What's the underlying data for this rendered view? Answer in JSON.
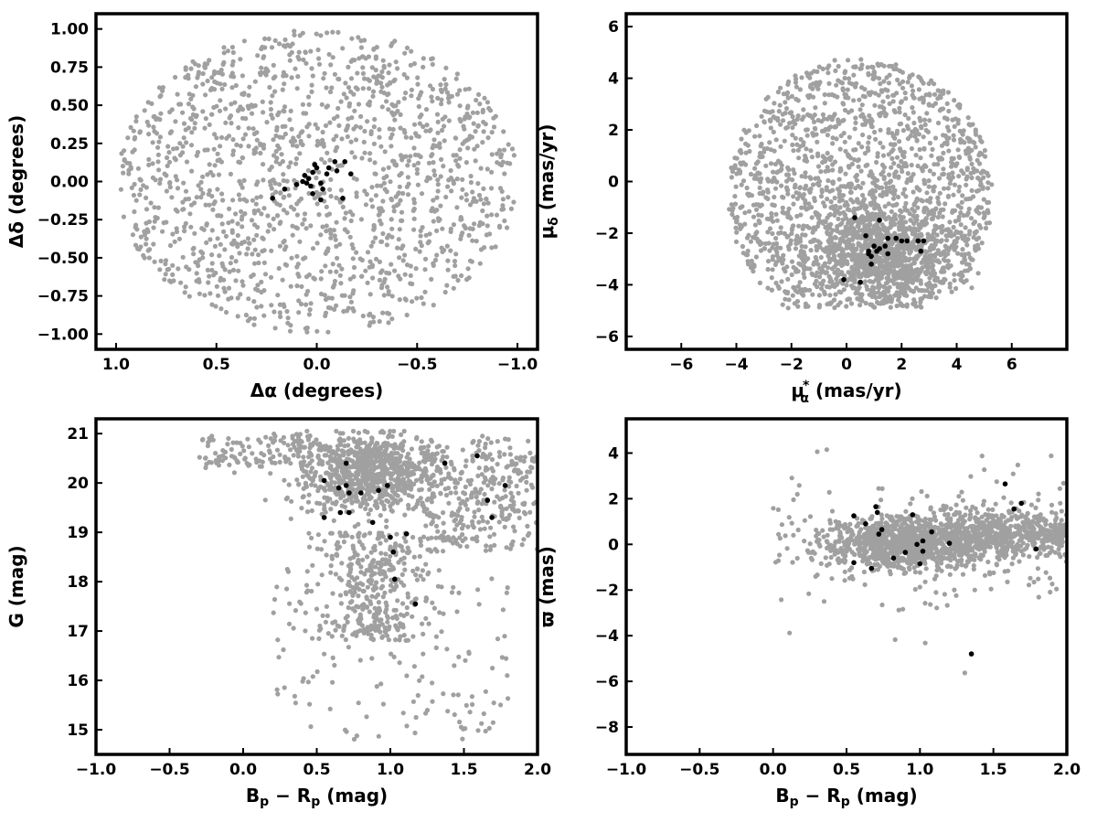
{
  "chart_data": [
    {
      "type": "scatter",
      "id": "sky",
      "xlabel": "Δα (degrees)",
      "ylabel": "Δδ (degrees)",
      "xlim": [
        1.1,
        -1.1
      ],
      "ylim": [
        -1.1,
        1.1
      ],
      "x_inverted": true,
      "xticks": [
        1.0,
        0.5,
        0.0,
        -0.5,
        -1.0
      ],
      "xtick_labels": [
        "1.0",
        "0.5",
        "0.0",
        "−0.5",
        "−1.0"
      ],
      "yticks": [
        -1.0,
        -0.75,
        -0.5,
        -0.25,
        0.0,
        0.25,
        0.5,
        0.75,
        1.0
      ],
      "ytick_labels": [
        "−1.00",
        "−0.75",
        "−0.50",
        "−0.25",
        "0.00",
        "0.25",
        "0.50",
        "0.75",
        "1.00"
      ],
      "series": [
        {
          "color": "#a0a0a0",
          "distribution": {
            "shape": "disk",
            "center": [
              0,
              0
            ],
            "radius": 1.0,
            "count": 1500,
            "seed": 11
          }
        },
        {
          "color": "#000000",
          "points": [
            [
              0.22,
              -0.11
            ],
            [
              0.16,
              -0.05
            ],
            [
              0.1,
              -0.02
            ],
            [
              0.07,
              0.0
            ],
            [
              0.05,
              -0.01
            ],
            [
              0.04,
              0.02
            ],
            [
              0.03,
              -0.03
            ],
            [
              0.02,
              0.06
            ],
            [
              0.02,
              -0.08
            ],
            [
              0.01,
              0.11
            ],
            [
              0.0,
              0.09
            ],
            [
              -0.02,
              -0.01
            ],
            [
              -0.02,
              -0.12
            ],
            [
              -0.05,
              0.05
            ],
            [
              -0.06,
              0.09
            ],
            [
              -0.09,
              0.13
            ],
            [
              -0.1,
              0.07
            ],
            [
              -0.13,
              -0.11
            ],
            [
              -0.14,
              0.13
            ],
            [
              -0.17,
              0.05
            ],
            [
              -0.03,
              -0.05
            ],
            [
              0.06,
              0.04
            ]
          ]
        }
      ]
    },
    {
      "type": "scatter",
      "id": "pm",
      "xlabel": "μ",
      "xlabel_sub": "α",
      "xlabel_sup": "*",
      "xlabel_suffix": "(mas/yr)",
      "ylabel": "μ",
      "ylabel_sub": "δ",
      "ylabel_suffix": "(mas/yr)",
      "xlim": [
        -8,
        8
      ],
      "ylim": [
        -6.5,
        6.5
      ],
      "xticks": [
        -6,
        -4,
        -2,
        0,
        2,
        4,
        6
      ],
      "xtick_labels": [
        "−6",
        "−4",
        "−2",
        "0",
        "2",
        "4",
        "6"
      ],
      "yticks": [
        -6,
        -4,
        -2,
        0,
        2,
        4,
        6
      ],
      "ytick_labels": [
        "−6",
        "−4",
        "−2",
        "0",
        "2",
        "4",
        "6"
      ],
      "series": [
        {
          "color": "#a0a0a0",
          "distribution": {
            "shape": "clipped-disk",
            "center": [
              0.5,
              -0.5
            ],
            "radius_x": 4.8,
            "radius_y": 5.3,
            "clip_ymin": -4.9,
            "dense_center": [
              1.2,
              -2.8
            ],
            "dense_sigma": [
              1.4,
              1.0
            ],
            "count": 1550,
            "dense_count": 950,
            "seed": 23
          }
        },
        {
          "color": "#000000",
          "points": [
            [
              0.3,
              -1.4
            ],
            [
              1.2,
              -1.5
            ],
            [
              0.7,
              -2.1
            ],
            [
              1.5,
              -2.2
            ],
            [
              1.8,
              -2.2
            ],
            [
              2.0,
              -2.3
            ],
            [
              2.2,
              -2.3
            ],
            [
              2.6,
              -2.3
            ],
            [
              2.8,
              -2.3
            ],
            [
              1.0,
              -2.5
            ],
            [
              1.2,
              -2.6
            ],
            [
              1.4,
              -2.5
            ],
            [
              1.1,
              -2.7
            ],
            [
              1.5,
              -2.8
            ],
            [
              2.7,
              -2.7
            ],
            [
              0.8,
              -2.8
            ],
            [
              0.9,
              -2.9
            ],
            [
              0.9,
              -3.2
            ],
            [
              -0.1,
              -3.8
            ],
            [
              0.5,
              -3.9
            ],
            [
              0.8,
              -2.7
            ]
          ]
        }
      ]
    },
    {
      "type": "scatter",
      "id": "cmd",
      "xlabel": "B",
      "xlabel_sub": "p",
      "xlabel_mid": " − R",
      "xlabel_sub2": "p",
      "xlabel_suffix": "(mag)",
      "ylabel": "G (mag)",
      "xlim": [
        -1.0,
        2.0
      ],
      "ylim": [
        14.5,
        21.3
      ],
      "xticks": [
        -1.0,
        -0.5,
        0.0,
        0.5,
        1.0,
        1.5,
        2.0
      ],
      "xtick_labels": [
        "−1.0",
        "−0.5",
        "0.0",
        "0.5",
        "1.0",
        "1.5",
        "2.0"
      ],
      "yticks": [
        15,
        16,
        17,
        18,
        19,
        20,
        21
      ],
      "ytick_labels": [
        "15",
        "16",
        "17",
        "18",
        "19",
        "20",
        "21"
      ],
      "series": [
        {
          "color": "#a0a0a0",
          "distribution": {
            "shape": "cmd",
            "count": 1750,
            "seed": 37
          }
        },
        {
          "color": "#000000",
          "points": [
            [
              0.55,
              20.05
            ],
            [
              0.65,
              19.9
            ],
            [
              0.7,
              20.4
            ],
            [
              0.7,
              19.95
            ],
            [
              0.72,
              19.8
            ],
            [
              0.8,
              19.8
            ],
            [
              0.72,
              19.4
            ],
            [
              0.66,
              19.4
            ],
            [
              0.55,
              19.3
            ],
            [
              0.88,
              19.2
            ],
            [
              0.92,
              19.85
            ],
            [
              0.98,
              19.95
            ],
            [
              1.11,
              18.97
            ],
            [
              1.0,
              18.9
            ],
            [
              1.02,
              18.6
            ],
            [
              1.03,
              18.05
            ],
            [
              1.17,
              17.55
            ],
            [
              1.37,
              20.4
            ],
            [
              1.59,
              20.55
            ],
            [
              1.66,
              19.65
            ],
            [
              1.78,
              19.95
            ],
            [
              1.69,
              19.3
            ]
          ]
        }
      ]
    },
    {
      "type": "scatter",
      "id": "parallax",
      "xlabel": "B",
      "xlabel_sub": "p",
      "xlabel_mid": " − R",
      "xlabel_sub2": "p",
      "xlabel_suffix": "(mag)",
      "ylabel": "ϖ (mas)",
      "xlim": [
        -1.0,
        2.0
      ],
      "ylim": [
        -9.2,
        5.5
      ],
      "xticks": [
        -1.0,
        -0.5,
        0.0,
        0.5,
        1.0,
        1.5,
        2.0
      ],
      "xtick_labels": [
        "−1.0",
        "−0.5",
        "0.0",
        "0.5",
        "1.0",
        "1.5",
        "2.0"
      ],
      "yticks": [
        -8,
        -6,
        -4,
        -2,
        0,
        2,
        4
      ],
      "ytick_labels": [
        "−8",
        "−6",
        "−4",
        "−2",
        "0",
        "2",
        "4"
      ],
      "series": [
        {
          "color": "#a0a0a0",
          "distribution": {
            "shape": "band",
            "count": 1750,
            "seed": 53
          }
        },
        {
          "color": "#000000",
          "points": [
            [
              0.55,
              1.25
            ],
            [
              0.63,
              0.9
            ],
            [
              0.7,
              1.65
            ],
            [
              0.71,
              1.4
            ],
            [
              0.72,
              0.45
            ],
            [
              0.74,
              0.65
            ],
            [
              0.55,
              -0.8
            ],
            [
              0.67,
              -1.05
            ],
            [
              0.82,
              -0.6
            ],
            [
              0.9,
              -0.35
            ],
            [
              0.95,
              1.3
            ],
            [
              0.98,
              0.0
            ],
            [
              1.0,
              -0.85
            ],
            [
              1.02,
              -0.3
            ],
            [
              1.02,
              0.15
            ],
            [
              1.08,
              0.55
            ],
            [
              1.35,
              -4.8
            ],
            [
              1.58,
              2.65
            ],
            [
              1.64,
              1.55
            ],
            [
              1.69,
              1.8
            ],
            [
              1.79,
              -0.2
            ],
            [
              1.2,
              0.05
            ]
          ]
        }
      ]
    }
  ]
}
